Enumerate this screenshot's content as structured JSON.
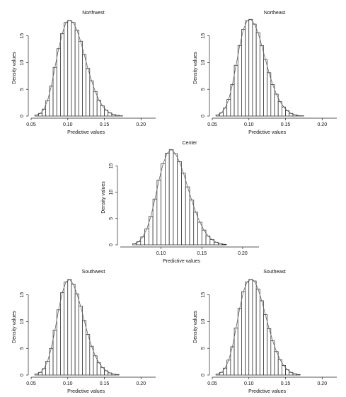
{
  "chart_data": [
    {
      "type": "bar",
      "title": "Northwest",
      "xlabel": "Predictive values",
      "ylabel": "Density values",
      "xlim": [
        0.05,
        0.22
      ],
      "ylim": [
        0,
        18
      ],
      "xticks": [
        "0.05",
        "0.10",
        "0.15",
        "0.20"
      ],
      "yticks": [
        "0",
        "5",
        "10",
        "15"
      ],
      "bin_start": 0.055,
      "bin_width": 0.005,
      "values": [
        0.2,
        0.5,
        1.3,
        2.9,
        5.6,
        9.1,
        12.6,
        15.4,
        17.5,
        17.9,
        17.5,
        16.1,
        14.0,
        11.5,
        8.9,
        6.6,
        4.6,
        3.0,
        1.9,
        1.1,
        0.6,
        0.3,
        0.15,
        0.05
      ]
    },
    {
      "type": "bar",
      "title": "Northeast",
      "xlabel": "Predictive values",
      "ylabel": "Density values",
      "xlim": [
        0.05,
        0.22
      ],
      "ylim": [
        0,
        18
      ],
      "xticks": [
        "0.05",
        "0.10",
        "0.15",
        "0.20"
      ],
      "yticks": [
        "0",
        "5",
        "10",
        "15"
      ],
      "bin_start": 0.055,
      "bin_width": 0.005,
      "values": [
        0.2,
        0.6,
        1.5,
        3.1,
        5.9,
        9.5,
        13.2,
        16.2,
        17.8,
        18.1,
        17.2,
        15.6,
        13.2,
        10.6,
        8.1,
        5.9,
        4.1,
        2.7,
        1.7,
        1.0,
        0.5,
        0.25,
        0.1,
        0.05
      ]
    },
    {
      "type": "bar",
      "title": "Center",
      "xlabel": "Predictive values",
      "ylabel": "Density values",
      "xlim": [
        0.05,
        0.22
      ],
      "ylim": [
        0,
        18
      ],
      "xticks": [
        "0.10",
        "0.15",
        "0.20"
      ],
      "yticks": [
        "0",
        "5",
        "10",
        "15"
      ],
      "bin_start": 0.065,
      "bin_width": 0.005,
      "values": [
        0.2,
        0.6,
        1.5,
        3.0,
        5.4,
        8.7,
        12.3,
        15.4,
        17.4,
        18.1,
        17.3,
        15.8,
        13.6,
        11.0,
        8.5,
        6.2,
        4.3,
        2.8,
        1.7,
        1.0,
        0.5,
        0.25,
        0.1
      ]
    },
    {
      "type": "bar",
      "title": "Southwest",
      "xlabel": "Predictive values",
      "ylabel": "Density values",
      "xlim": [
        0.05,
        0.22
      ],
      "ylim": [
        0,
        18
      ],
      "xticks": [
        "0.05",
        "0.10",
        "0.15",
        "0.20"
      ],
      "yticks": [
        "0",
        "5",
        "10",
        "15"
      ],
      "bin_start": 0.055,
      "bin_width": 0.005,
      "values": [
        0.2,
        0.5,
        1.2,
        2.6,
        5.0,
        8.4,
        12.2,
        15.4,
        17.4,
        17.9,
        17.0,
        15.2,
        12.9,
        10.2,
        7.6,
        5.4,
        3.6,
        2.3,
        1.4,
        0.8,
        0.4,
        0.2,
        0.1
      ]
    },
    {
      "type": "bar",
      "title": "Southeast",
      "xlabel": "Predictive values",
      "ylabel": "Density values",
      "xlim": [
        0.05,
        0.22
      ],
      "ylim": [
        0,
        18
      ],
      "xticks": [
        "0.05",
        "0.10",
        "0.15",
        "0.20"
      ],
      "yticks": [
        "0",
        "5",
        "10",
        "15"
      ],
      "bin_start": 0.055,
      "bin_width": 0.005,
      "values": [
        0.2,
        0.5,
        1.3,
        2.8,
        5.3,
        8.8,
        12.5,
        15.6,
        17.4,
        17.9,
        17.6,
        16.1,
        13.9,
        11.3,
        8.7,
        6.4,
        4.4,
        2.9,
        1.8,
        1.0,
        0.5,
        0.25,
        0.1
      ]
    }
  ]
}
